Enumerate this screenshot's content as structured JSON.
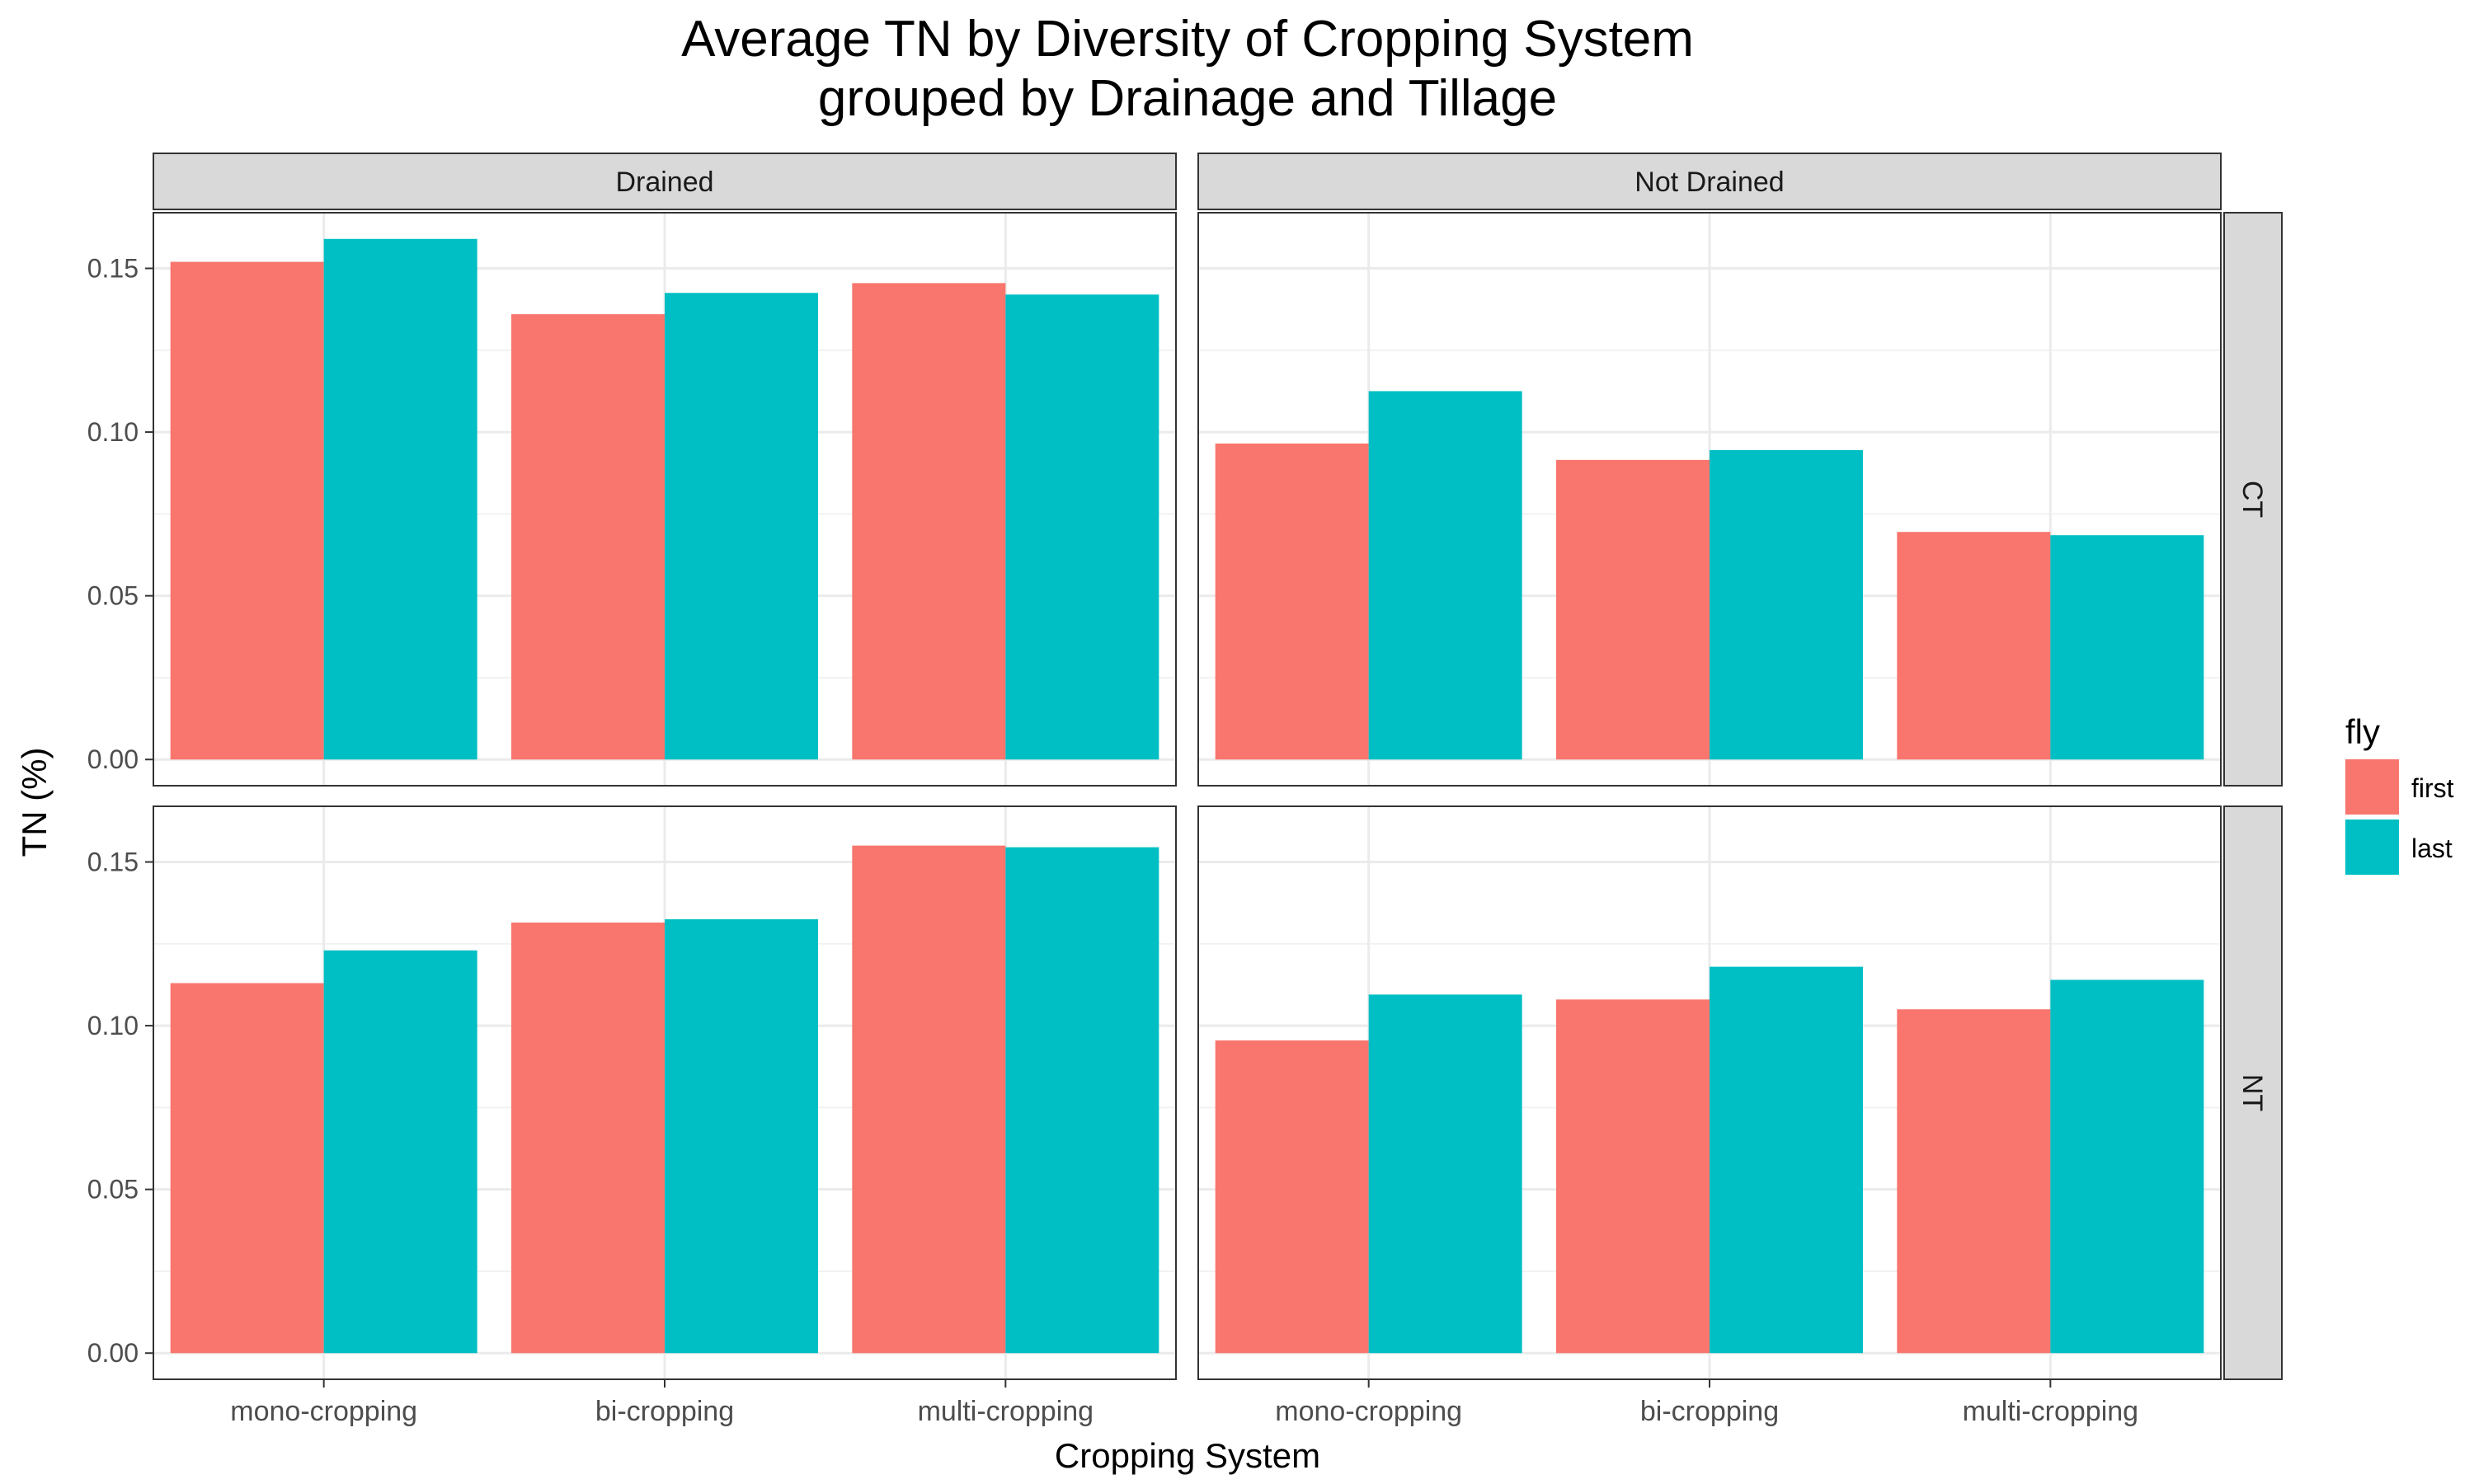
{
  "chart_data": {
    "type": "bar",
    "title": "Average TN by Diversity of Cropping System",
    "subtitle": "grouped by Drainage and Tillage",
    "xlabel": "Cropping System",
    "ylabel": "TN (%)",
    "categories": [
      "mono-cropping",
      "bi-cropping",
      "multi-cropping"
    ],
    "col_facets": [
      "Drained",
      "Not Drained"
    ],
    "row_facets": [
      "CT",
      "NT"
    ],
    "y_ticks": [
      "0.00",
      "0.05",
      "0.10",
      "0.15"
    ],
    "ylim": [
      -0.008,
      0.167
    ],
    "grid": true,
    "legend": {
      "title": "fly",
      "position": "right",
      "items": [
        {
          "name": "first",
          "color": "#F8766D"
        },
        {
          "name": "last",
          "color": "#00BFC4"
        }
      ]
    },
    "panels": [
      {
        "col": "Drained",
        "row": "CT",
        "series": [
          {
            "name": "first",
            "values": [
              0.152,
              0.136,
              0.1455
            ]
          },
          {
            "name": "last",
            "values": [
              0.159,
              0.1425,
              0.142
            ]
          }
        ]
      },
      {
        "col": "Not Drained",
        "row": "CT",
        "series": [
          {
            "name": "first",
            "values": [
              0.0965,
              0.0915,
              0.0695
            ]
          },
          {
            "name": "last",
            "values": [
              0.1125,
              0.0945,
              0.0685
            ]
          }
        ]
      },
      {
        "col": "Drained",
        "row": "NT",
        "series": [
          {
            "name": "first",
            "values": [
              0.113,
              0.1315,
              0.155
            ]
          },
          {
            "name": "last",
            "values": [
              0.123,
              0.1325,
              0.1545
            ]
          }
        ]
      },
      {
        "col": "Not Drained",
        "row": "NT",
        "series": [
          {
            "name": "first",
            "values": [
              0.0955,
              0.108,
              0.105
            ]
          },
          {
            "name": "last",
            "values": [
              0.1095,
              0.118,
              0.114
            ]
          }
        ]
      }
    ]
  }
}
